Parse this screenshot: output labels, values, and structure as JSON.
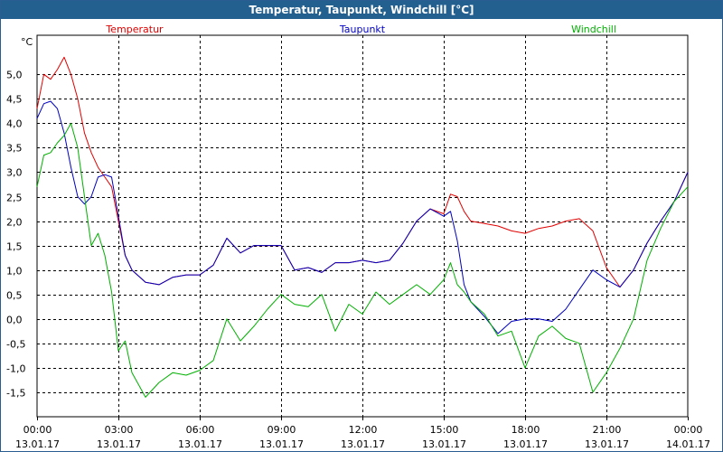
{
  "chart_data": {
    "type": "line",
    "title": "Temperatur, Taupunkt, Windchill [°C]",
    "ylabel": "°C",
    "ylim": [
      -2.0,
      5.8
    ],
    "yticks": [
      "5,0",
      "4,5",
      "4,0",
      "3,5",
      "3,0",
      "2,5",
      "2,0",
      "1,5",
      "1,0",
      "0,5",
      "0,0",
      "-0,5",
      "-1,0",
      "-1,5"
    ],
    "ytick_values": [
      5.0,
      4.5,
      4.0,
      3.5,
      3.0,
      2.5,
      2.0,
      1.5,
      1.0,
      0.5,
      0.0,
      -0.5,
      -1.0,
      -1.5
    ],
    "xlim": [
      0,
      24
    ],
    "xticks": [
      {
        "time": "00:00",
        "date": "13.01.17"
      },
      {
        "time": "03:00",
        "date": "13.01.17"
      },
      {
        "time": "06:00",
        "date": "13.01.17"
      },
      {
        "time": "09:00",
        "date": "13.01.17"
      },
      {
        "time": "12:00",
        "date": "13.01.17"
      },
      {
        "time": "15:00",
        "date": "13.01.17"
      },
      {
        "time": "18:00",
        "date": "13.01.17"
      },
      {
        "time": "21:00",
        "date": "13.01.17"
      },
      {
        "time": "00:00",
        "date": "14.01.17"
      }
    ],
    "xtick_values": [
      0,
      3,
      6,
      9,
      12,
      15,
      18,
      21,
      24
    ],
    "grid": true,
    "legend_position": "top",
    "series": [
      {
        "name": "Temperatur",
        "color": "#e00000",
        "x": [
          0,
          0.25,
          0.5,
          0.75,
          1.0,
          1.25,
          1.5,
          1.75,
          2.0,
          2.25,
          2.5,
          2.75,
          3.0,
          3.25,
          3.5,
          4.0,
          4.5,
          5.0,
          5.5,
          6.0,
          6.5,
          7.0,
          7.5,
          8.0,
          8.5,
          9.0,
          9.5,
          10.0,
          10.5,
          11.0,
          11.5,
          12.0,
          12.5,
          13.0,
          13.5,
          14.0,
          14.5,
          15.0,
          15.25,
          15.5,
          15.75,
          16.0,
          16.5,
          17.0,
          17.5,
          18.0,
          18.5,
          19.0,
          19.5,
          20.0,
          20.5,
          21.0,
          21.5,
          22.0,
          22.5,
          23.0,
          23.5,
          24.0
        ],
        "values": [
          4.3,
          5.0,
          4.9,
          5.1,
          5.35,
          5.0,
          4.5,
          3.8,
          3.4,
          3.1,
          2.9,
          2.7,
          2.0,
          1.3,
          1.0,
          0.75,
          0.7,
          0.85,
          0.9,
          0.9,
          1.1,
          1.65,
          1.35,
          1.5,
          1.5,
          1.5,
          1.0,
          1.05,
          0.95,
          1.15,
          1.15,
          1.2,
          1.15,
          1.2,
          1.55,
          2.0,
          2.25,
          2.15,
          2.55,
          2.5,
          2.2,
          2.0,
          1.95,
          1.9,
          1.8,
          1.75,
          1.85,
          1.9,
          2.0,
          2.05,
          1.8,
          1.05,
          0.65,
          1.0,
          1.55,
          2.0,
          2.4,
          3.0
        ]
      },
      {
        "name": "Taupunkt",
        "color": "#0000c0",
        "x": [
          0,
          0.25,
          0.5,
          0.75,
          1.0,
          1.25,
          1.5,
          1.75,
          2.0,
          2.25,
          2.5,
          2.75,
          3.0,
          3.25,
          3.5,
          4.0,
          4.5,
          5.0,
          5.5,
          6.0,
          6.5,
          7.0,
          7.5,
          8.0,
          8.5,
          9.0,
          9.5,
          10.0,
          10.5,
          11.0,
          11.5,
          12.0,
          12.5,
          13.0,
          13.5,
          14.0,
          14.5,
          15.0,
          15.25,
          15.5,
          15.75,
          16.0,
          16.5,
          17.0,
          17.5,
          18.0,
          18.5,
          19.0,
          19.5,
          20.0,
          20.5,
          21.0,
          21.5,
          22.0,
          22.5,
          23.0,
          23.5,
          24.0
        ],
        "values": [
          4.1,
          4.4,
          4.45,
          4.3,
          3.8,
          3.1,
          2.5,
          2.35,
          2.5,
          2.9,
          2.95,
          2.9,
          2.1,
          1.3,
          1.0,
          0.75,
          0.7,
          0.85,
          0.9,
          0.9,
          1.1,
          1.65,
          1.35,
          1.5,
          1.5,
          1.5,
          1.0,
          1.05,
          0.95,
          1.15,
          1.15,
          1.2,
          1.15,
          1.2,
          1.55,
          2.0,
          2.25,
          2.1,
          2.2,
          1.6,
          0.7,
          0.35,
          0.05,
          -0.3,
          -0.05,
          0.0,
          0.0,
          -0.05,
          0.2,
          0.6,
          1.0,
          0.8,
          0.65,
          1.0,
          1.55,
          2.0,
          2.4,
          3.0
        ]
      },
      {
        "name": "Windchill",
        "color": "#00b000",
        "x": [
          0,
          0.25,
          0.5,
          0.75,
          1.0,
          1.25,
          1.5,
          1.75,
          2.0,
          2.25,
          2.5,
          2.75,
          3.0,
          3.25,
          3.5,
          4.0,
          4.5,
          5.0,
          5.5,
          6.0,
          6.5,
          7.0,
          7.5,
          8.0,
          8.5,
          9.0,
          9.5,
          10.0,
          10.5,
          11.0,
          11.5,
          12.0,
          12.5,
          13.0,
          13.5,
          14.0,
          14.5,
          15.0,
          15.25,
          15.5,
          15.75,
          16.0,
          16.5,
          17.0,
          17.5,
          18.0,
          18.5,
          19.0,
          19.5,
          20.0,
          20.5,
          21.0,
          21.5,
          22.0,
          22.5,
          23.0,
          23.5,
          24.0
        ],
        "values": [
          2.7,
          3.35,
          3.4,
          3.6,
          3.75,
          4.0,
          3.5,
          2.5,
          1.5,
          1.75,
          1.3,
          0.55,
          -0.65,
          -0.45,
          -1.1,
          -1.6,
          -1.3,
          -1.1,
          -1.15,
          -1.05,
          -0.85,
          0.0,
          -0.45,
          -0.15,
          0.2,
          0.5,
          0.3,
          0.25,
          0.5,
          -0.25,
          0.3,
          0.1,
          0.55,
          0.3,
          0.5,
          0.7,
          0.5,
          0.8,
          1.15,
          0.7,
          0.55,
          0.35,
          0.1,
          -0.35,
          -0.25,
          -1.0,
          -0.35,
          -0.15,
          -0.4,
          -0.5,
          -1.5,
          -1.1,
          -0.6,
          0.0,
          1.2,
          1.85,
          2.4,
          2.7
        ]
      }
    ]
  }
}
